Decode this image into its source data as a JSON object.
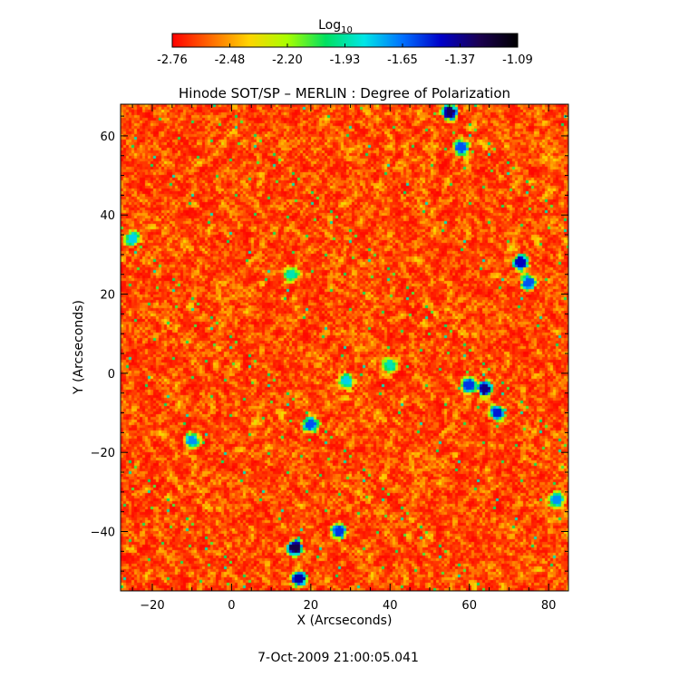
{
  "chart_data": {
    "type": "heatmap",
    "title": "Hinode SOT/SP – MERLIN : Degree of Polarization",
    "xlabel": "X (Arcseconds)",
    "ylabel": "Y (Arcseconds)",
    "xlim": [
      -28,
      85
    ],
    "ylim": [
      -55,
      68
    ],
    "xticks": [
      -20,
      0,
      20,
      40,
      60,
      80
    ],
    "yticks": [
      -40,
      -20,
      0,
      20,
      40,
      60
    ],
    "colorbar": {
      "label_base": "Log",
      "label_sub": "10",
      "range": [
        -2.76,
        -1.09
      ],
      "ticks": [
        "-2.76",
        "-2.48",
        "-2.20",
        "-1.93",
        "-1.65",
        "-1.37",
        "-1.09"
      ],
      "colormap": [
        "#ff0000",
        "#ff6a00",
        "#ffd400",
        "#a8ff00",
        "#00e060",
        "#00e6e6",
        "#0070ff",
        "#0000c8",
        "#1a0050",
        "#000000"
      ]
    },
    "background_value_range": [
      -2.76,
      -2.3
    ],
    "features": [
      {
        "x": 55,
        "y": 66,
        "v": -1.3
      },
      {
        "x": 58,
        "y": 57,
        "v": -1.6
      },
      {
        "x": 73,
        "y": 28,
        "v": -1.45
      },
      {
        "x": 75,
        "y": 23,
        "v": -1.6
      },
      {
        "x": 64,
        "y": -4,
        "v": -1.35
      },
      {
        "x": 60,
        "y": -3,
        "v": -1.55
      },
      {
        "x": 67,
        "y": -10,
        "v": -1.5
      },
      {
        "x": 16,
        "y": -44,
        "v": -1.25
      },
      {
        "x": 17,
        "y": -52,
        "v": -1.4
      },
      {
        "x": 27,
        "y": -40,
        "v": -1.55
      },
      {
        "x": 20,
        "y": -13,
        "v": -1.6
      },
      {
        "x": -10,
        "y": -17,
        "v": -1.7
      },
      {
        "x": 82,
        "y": -32,
        "v": -1.7
      },
      {
        "x": -25,
        "y": 34,
        "v": -1.8
      },
      {
        "x": 15,
        "y": 25,
        "v": -1.9
      },
      {
        "x": 40,
        "y": 2,
        "v": -1.9
      },
      {
        "x": 29,
        "y": -2,
        "v": -1.8
      }
    ]
  },
  "footer": {
    "timestamp": "7-Oct-2009 21:00:05.041"
  }
}
